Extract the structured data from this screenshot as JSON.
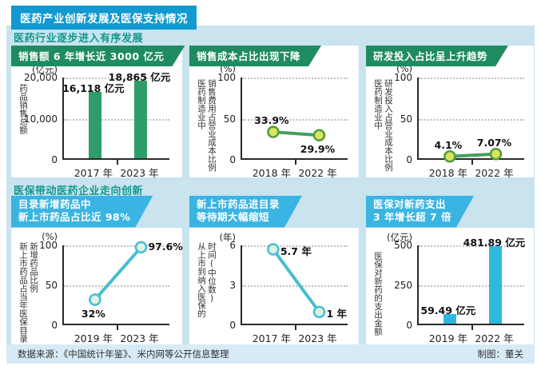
{
  "page": {
    "title": "医药产业创新发展及医保支持情况",
    "footer_left": "数据来源：《中国统计年鉴》、米内网等公开信息整理",
    "footer_right": "制图：董关"
  },
  "sections": [
    {
      "title": "医药行业逐步进入有序发展"
    },
    {
      "title": "医保带动医药企业走向创新"
    }
  ],
  "colors": {
    "page_bg": "#ffffff",
    "panel_bg": "#c9e3ef",
    "top_banner_bg": "#1199d1",
    "section_title": "#12998c",
    "green_header_bg": "#1f8b60",
    "blue_header_bg": "#3ab4e2",
    "green_bar": "#2f9d69",
    "green_line": "#44a05e",
    "green_marker_fill": "#dbe45c",
    "green_marker_stroke": "#4f9d3f",
    "cyan_bar": "#30b9de",
    "cyan_line": "#45bfd0",
    "cyan_marker_fill": "#ddf2e3",
    "cyan_marker_stroke": "#45bfd0",
    "footer_bg": "#d6ebf5",
    "axis": "#2a2a2a"
  },
  "chart_data": [
    {
      "type": "bar",
      "theme": "green",
      "header_lines": [
        "销售额 6 年增长近 3000 亿元"
      ],
      "unit": "(亿元)",
      "ylabel_cols": [
        "药品销售总额"
      ],
      "ylim": [
        0,
        20000
      ],
      "ticks": [
        {
          "value": 20000,
          "label": "20,000"
        },
        {
          "value": 10000,
          "label": "10,000"
        },
        {
          "value": 0,
          "label": "0"
        }
      ],
      "categories": [
        "2017 年",
        "2023 年"
      ],
      "values": [
        16118,
        18865
      ],
      "value_labels": [
        "16,118 亿元",
        "18,865 亿元"
      ],
      "label_pos": [
        "above",
        "above"
      ]
    },
    {
      "type": "line",
      "theme": "green",
      "header_lines": [
        "销售成本占比出现下降"
      ],
      "unit": "(%)",
      "ylabel_cols": [
        "医药制造业中",
        "销售费用占营业成本比例"
      ],
      "ylim": [
        0,
        100
      ],
      "ticks": [
        {
          "value": 100,
          "label": "100"
        },
        {
          "value": 50,
          "label": "50"
        },
        {
          "value": 0,
          "label": "0"
        }
      ],
      "categories": [
        "2018 年",
        "2022 年"
      ],
      "values": [
        33.9,
        29.9
      ],
      "value_labels": [
        "33.9%",
        "29.9%"
      ],
      "label_pos": [
        "above",
        "below"
      ]
    },
    {
      "type": "line",
      "theme": "green",
      "header_lines": [
        "研发投入占比呈上升趋势"
      ],
      "unit": "(%)",
      "ylabel_cols": [
        "医药制造业中",
        "研发投入占营业成本比例"
      ],
      "ylim": [
        0,
        100
      ],
      "ticks": [
        {
          "value": 100,
          "label": "100"
        },
        {
          "value": 50,
          "label": "50"
        },
        {
          "value": 0,
          "label": "0"
        }
      ],
      "categories": [
        "2018 年",
        "2022 年"
      ],
      "values": [
        4.1,
        7.07
      ],
      "value_labels": [
        "4.1%",
        "7.07%"
      ],
      "label_pos": [
        "above",
        "above"
      ]
    },
    {
      "type": "line",
      "theme": "cyan",
      "header_lines": [
        "目录新增药品中",
        "新上市药品占比近 98%"
      ],
      "unit": "(%)",
      "ylabel_cols": [
        "新上市药品占当年医保目录",
        "新增药品比例"
      ],
      "ylim": [
        0,
        100
      ],
      "ticks": [
        {
          "value": 100,
          "label": "100"
        },
        {
          "value": 50,
          "label": "50"
        },
        {
          "value": 0,
          "label": "0"
        }
      ],
      "categories": [
        "2019 年",
        "2023 年"
      ],
      "values": [
        32,
        97.6
      ],
      "value_labels": [
        "32%",
        "97.6%"
      ],
      "label_pos": [
        "below",
        "right"
      ]
    },
    {
      "type": "line",
      "theme": "cyan",
      "header_lines": [
        "新上市药品进目录",
        "等待期大幅缩短"
      ],
      "unit": "(年)",
      "ylabel_cols": [
        "从上市到纳入医保的",
        "时间(中位数)"
      ],
      "ylim": [
        0,
        6
      ],
      "ticks": [
        {
          "value": 6,
          "label": "6"
        },
        {
          "value": 3,
          "label": "3"
        },
        {
          "value": 0,
          "label": "0"
        }
      ],
      "categories": [
        "2017 年",
        "2023 年"
      ],
      "values": [
        5.7,
        1
      ],
      "value_labels": [
        "5.7 年",
        "1 年"
      ],
      "label_pos": [
        "right",
        "right"
      ]
    },
    {
      "type": "bar",
      "theme": "cyan",
      "header_lines": [
        "医保对新药支出",
        "3 年增长超 7 倍"
      ],
      "unit": "(亿元)",
      "ylabel_cols": [
        "医保对新药的支出金额"
      ],
      "ylim": [
        0,
        500
      ],
      "ticks": [
        {
          "value": 500,
          "label": "500"
        },
        {
          "value": 250,
          "label": "250"
        },
        {
          "value": 0,
          "label": "0"
        }
      ],
      "categories": [
        "2019 年",
        "2022 年"
      ],
      "values": [
        59.49,
        481.89
      ],
      "value_labels": [
        "59.49 亿元",
        "481.89 亿元"
      ],
      "label_pos": [
        "above",
        "above"
      ]
    }
  ]
}
